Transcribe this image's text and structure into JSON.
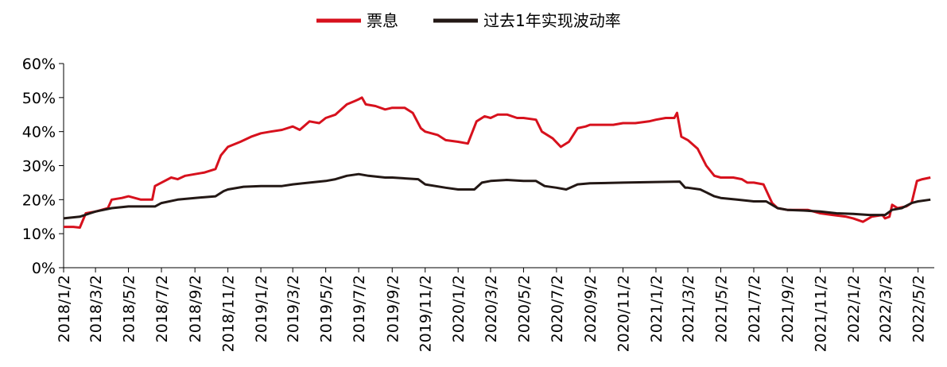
{
  "chart_data": {
    "type": "line",
    "title": "",
    "xlabel": "",
    "ylabel": "",
    "ylim": [
      0,
      60
    ],
    "y_unit": "%",
    "y_ticks": [
      "0%",
      "10%",
      "20%",
      "30%",
      "40%",
      "50%",
      "60%"
    ],
    "x_ticks": [
      "2018/1/2",
      "2018/3/2",
      "2018/5/2",
      "2018/7/2",
      "2018/9/2",
      "2018/11/2",
      "2019/1/2",
      "2019/3/2",
      "2019/5/2",
      "2019/7/2",
      "2019/9/2",
      "2019/11/2",
      "2020/1/2",
      "2020/3/2",
      "2020/5/2",
      "2020/7/2",
      "2020/9/2",
      "2020/11/2",
      "2021/1/2",
      "2021/3/2",
      "2021/5/2",
      "2021/7/2",
      "2021/9/2",
      "2021/11/2",
      "2022/1/2",
      "2022/3/2",
      "2022/5/2"
    ],
    "legend_position": "top-center",
    "grid": false,
    "series": [
      {
        "name": "票息",
        "color": "#d7111d",
        "points": [
          [
            "2018/1/2",
            12
          ],
          [
            "2018/1/20",
            12
          ],
          [
            "2018/2/1",
            11.8
          ],
          [
            "2018/2/12",
            16
          ],
          [
            "2018/3/2",
            16.5
          ],
          [
            "2018/3/25",
            17.5
          ],
          [
            "2018/4/1",
            20
          ],
          [
            "2018/4/20",
            20.5
          ],
          [
            "2018/5/2",
            21
          ],
          [
            "2018/5/25",
            20
          ],
          [
            "2018/6/15",
            20
          ],
          [
            "2018/6/20",
            24
          ],
          [
            "2018/7/2",
            25
          ],
          [
            "2018/7/20",
            26.5
          ],
          [
            "2018/8/1",
            26
          ],
          [
            "2018/8/15",
            27
          ],
          [
            "2018/9/2",
            27.5
          ],
          [
            "2018/9/20",
            28
          ],
          [
            "2018/10/10",
            29
          ],
          [
            "2018/10/20",
            33
          ],
          [
            "2018/11/2",
            35.5
          ],
          [
            "2018/11/25",
            37
          ],
          [
            "2018/12/15",
            38.5
          ],
          [
            "2019/1/2",
            39.5
          ],
          [
            "2019/1/20",
            40
          ],
          [
            "2019/2/10",
            40.5
          ],
          [
            "2019/3/2",
            41.5
          ],
          [
            "2019/3/15",
            40.5
          ],
          [
            "2019/4/2",
            43
          ],
          [
            "2019/4/20",
            42.5
          ],
          [
            "2019/5/2",
            44
          ],
          [
            "2019/5/20",
            45
          ],
          [
            "2019/6/10",
            48
          ],
          [
            "2019/6/25",
            49
          ],
          [
            "2019/7/2",
            49.5
          ],
          [
            "2019/7/8",
            50
          ],
          [
            "2019/7/15",
            48
          ],
          [
            "2019/8/2",
            47.5
          ],
          [
            "2019/8/20",
            46.5
          ],
          [
            "2019/9/2",
            47
          ],
          [
            "2019/9/25",
            47
          ],
          [
            "2019/10/10",
            45.5
          ],
          [
            "2019/10/25",
            41
          ],
          [
            "2019/11/2",
            40
          ],
          [
            "2019/11/25",
            39
          ],
          [
            "2019/12/10",
            37.5
          ],
          [
            "2020/1/2",
            37
          ],
          [
            "2020/1/20",
            36.5
          ],
          [
            "2020/2/5",
            43
          ],
          [
            "2020/2/20",
            44.5
          ],
          [
            "2020/3/2",
            44
          ],
          [
            "2020/3/15",
            45
          ],
          [
            "2020/4/2",
            45
          ],
          [
            "2020/4/20",
            44
          ],
          [
            "2020/5/2",
            44
          ],
          [
            "2020/5/25",
            43.5
          ],
          [
            "2020/6/5",
            40
          ],
          [
            "2020/6/25",
            38
          ],
          [
            "2020/7/10",
            35.5
          ],
          [
            "2020/7/25",
            37
          ],
          [
            "2020/8/10",
            41
          ],
          [
            "2020/8/25",
            41.5
          ],
          [
            "2020/9/2",
            42
          ],
          [
            "2020/9/25",
            42
          ],
          [
            "2020/10/15",
            42
          ],
          [
            "2020/11/2",
            42.5
          ],
          [
            "2020/11/25",
            42.5
          ],
          [
            "2020/12/20",
            43
          ],
          [
            "2021/1/2",
            43.5
          ],
          [
            "2021/1/20",
            44
          ],
          [
            "2021/2/5",
            44
          ],
          [
            "2021/2/10",
            45.5
          ],
          [
            "2021/2/18",
            38.5
          ],
          [
            "2021/3/2",
            37.5
          ],
          [
            "2021/3/20",
            35
          ],
          [
            "2021/4/5",
            30
          ],
          [
            "2021/4/20",
            27
          ],
          [
            "2021/5/2",
            26.5
          ],
          [
            "2021/5/25",
            26.5
          ],
          [
            "2021/6/10",
            26
          ],
          [
            "2021/6/20",
            25
          ],
          [
            "2021/7/2",
            25
          ],
          [
            "2021/7/20",
            24.5
          ],
          [
            "2021/8/5",
            19
          ],
          [
            "2021/8/15",
            17.5
          ],
          [
            "2021/9/2",
            17
          ],
          [
            "2021/9/25",
            17
          ],
          [
            "2021/10/10",
            17
          ],
          [
            "2021/11/2",
            16
          ],
          [
            "2021/11/25",
            15.5
          ],
          [
            "2021/12/20",
            15
          ],
          [
            "2022/1/2",
            14.5
          ],
          [
            "2022/1/20",
            13.5
          ],
          [
            "2022/2/5",
            15
          ],
          [
            "2022/2/25",
            15.5
          ],
          [
            "2022/3/2",
            14.5
          ],
          [
            "2022/3/10",
            15
          ],
          [
            "2022/3/15",
            18.5
          ],
          [
            "2022/3/25",
            17.5
          ],
          [
            "2022/4/10",
            18
          ],
          [
            "2022/4/20",
            19
          ],
          [
            "2022/4/30",
            25.5
          ],
          [
            "2022/5/10",
            26
          ],
          [
            "2022/5/25",
            26.5
          ]
        ]
      },
      {
        "name": "过去1年实现波动率",
        "color": "#231815",
        "points": [
          [
            "2018/1/2",
            14.5
          ],
          [
            "2018/2/1",
            15
          ],
          [
            "2018/2/20",
            16
          ],
          [
            "2018/3/2",
            16.5
          ],
          [
            "2018/4/1",
            17.5
          ],
          [
            "2018/5/2",
            18
          ],
          [
            "2018/6/20",
            18
          ],
          [
            "2018/7/2",
            19
          ],
          [
            "2018/8/1",
            20
          ],
          [
            "2018/9/2",
            20.5
          ],
          [
            "2018/10/10",
            21
          ],
          [
            "2018/10/25",
            22.5
          ],
          [
            "2018/11/2",
            23
          ],
          [
            "2018/12/1",
            23.8
          ],
          [
            "2019/1/2",
            24
          ],
          [
            "2019/2/10",
            24
          ],
          [
            "2019/3/2",
            24.5
          ],
          [
            "2019/4/2",
            25
          ],
          [
            "2019/5/2",
            25.5
          ],
          [
            "2019/5/20",
            26
          ],
          [
            "2019/6/10",
            27
          ],
          [
            "2019/7/2",
            27.5
          ],
          [
            "2019/7/20",
            27
          ],
          [
            "2019/8/20",
            26.5
          ],
          [
            "2019/9/2",
            26.5
          ],
          [
            "2019/10/20",
            26
          ],
          [
            "2019/11/2",
            24.5
          ],
          [
            "2019/12/10",
            23.5
          ],
          [
            "2020/1/2",
            23
          ],
          [
            "2020/2/1",
            23
          ],
          [
            "2020/2/15",
            25
          ],
          [
            "2020/3/2",
            25.5
          ],
          [
            "2020/4/1",
            25.8
          ],
          [
            "2020/5/2",
            25.5
          ],
          [
            "2020/5/25",
            25.5
          ],
          [
            "2020/6/10",
            24
          ],
          [
            "2020/7/2",
            23.5
          ],
          [
            "2020/7/20",
            23
          ],
          [
            "2020/8/10",
            24.5
          ],
          [
            "2020/9/2",
            24.8
          ],
          [
            "2020/11/2",
            25
          ],
          [
            "2021/1/2",
            25.2
          ],
          [
            "2021/2/15",
            25.3
          ],
          [
            "2021/2/25",
            23.5
          ],
          [
            "2021/3/2",
            23.5
          ],
          [
            "2021/3/25",
            23
          ],
          [
            "2021/4/20",
            21
          ],
          [
            "2021/5/2",
            20.5
          ],
          [
            "2021/6/1",
            20
          ],
          [
            "2021/7/2",
            19.5
          ],
          [
            "2021/7/25",
            19.5
          ],
          [
            "2021/8/15",
            17.5
          ],
          [
            "2021/9/2",
            17
          ],
          [
            "2021/10/2",
            16.8
          ],
          [
            "2021/11/2",
            16.5
          ],
          [
            "2021/12/2",
            16
          ],
          [
            "2022/1/2",
            15.8
          ],
          [
            "2022/2/1",
            15.5
          ],
          [
            "2022/3/2",
            15.5
          ],
          [
            "2022/3/15",
            17
          ],
          [
            "2022/4/2",
            17.5
          ],
          [
            "2022/4/20",
            19
          ],
          [
            "2022/5/2",
            19.5
          ],
          [
            "2022/5/25",
            20
          ]
        ]
      }
    ]
  }
}
